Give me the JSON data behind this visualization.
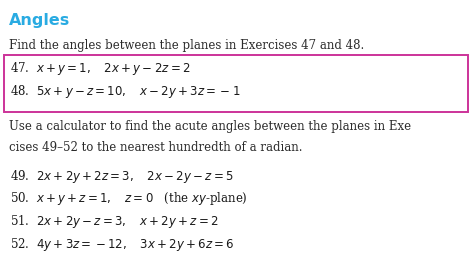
{
  "title": "Angles",
  "title_color": "#29ABE2",
  "bg_color": "#ffffff",
  "subtitle": "Find the angles between the planes in Exercises 47 and 48.",
  "boxed_lines": [
    "47.  $x + y = 1, \\quad  2x + y - 2z = 2$",
    "48.  $5x + y - z = 10, \\quad  x - 2y + 3z = -1$"
  ],
  "box_color": "#CC3399",
  "paragraph_line1": "Use a calculator to find the acute angles between the planes in Exe",
  "paragraph_line2": "cises 49–52 to the nearest hundredth of a radian.",
  "numbered_lines": [
    "49.  $2x + 2y + 2z = 3, \\quad  2x - 2y - z = 5$",
    "50.  $x + y + z = 1, \\quad  z = 0$   (the $xy$-plane)",
    "51.  $2x + 2y - z = 3, \\quad  x + 2y + z = 2$",
    "52.  $4y + 3z = -12, \\quad  3x + 2y + 6z = 6$"
  ],
  "font_size_title": 11.5,
  "font_size_text": 8.5,
  "font_size_math": 8.5,
  "figw": 4.75,
  "figh": 2.78,
  "dpi": 100
}
